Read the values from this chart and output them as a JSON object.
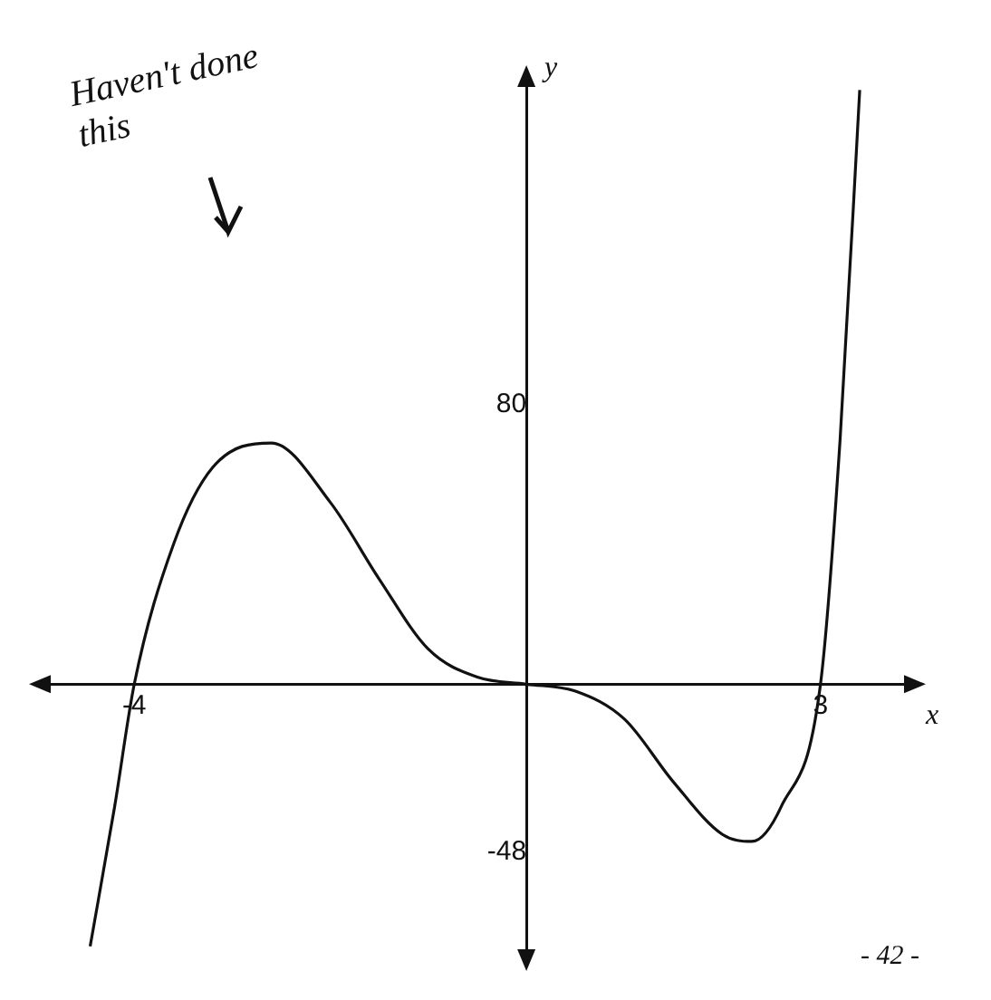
{
  "chart_data": {
    "type": "line",
    "xlabel": "x",
    "ylabel": "y",
    "x": [
      -4.45,
      -4.2,
      -4,
      -3.6,
      -3.2,
      -2.6,
      -2,
      -1.5,
      -1,
      -0.5,
      0,
      0.5,
      1,
      1.5,
      2,
      2.3,
      2.6,
      3,
      3.2,
      3.4
    ],
    "series": [
      {
        "color": "#111111",
        "values": [
          -75,
          -35,
          0,
          40,
          62,
          69,
          52,
          30,
          10,
          2,
          0,
          -2,
          -10,
          -28,
          -43,
          -45,
          -35,
          0,
          70,
          170
        ]
      }
    ],
    "xlim": [
      -5,
      4
    ],
    "ylim": [
      -80,
      175
    ],
    "xticks": [
      -4,
      3
    ],
    "yticks": [
      -48,
      80
    ],
    "grid": false,
    "legend": false,
    "marker": "none",
    "line_style": "solid",
    "annotations": [
      "Haven't done this",
      "- 42 -"
    ]
  }
}
